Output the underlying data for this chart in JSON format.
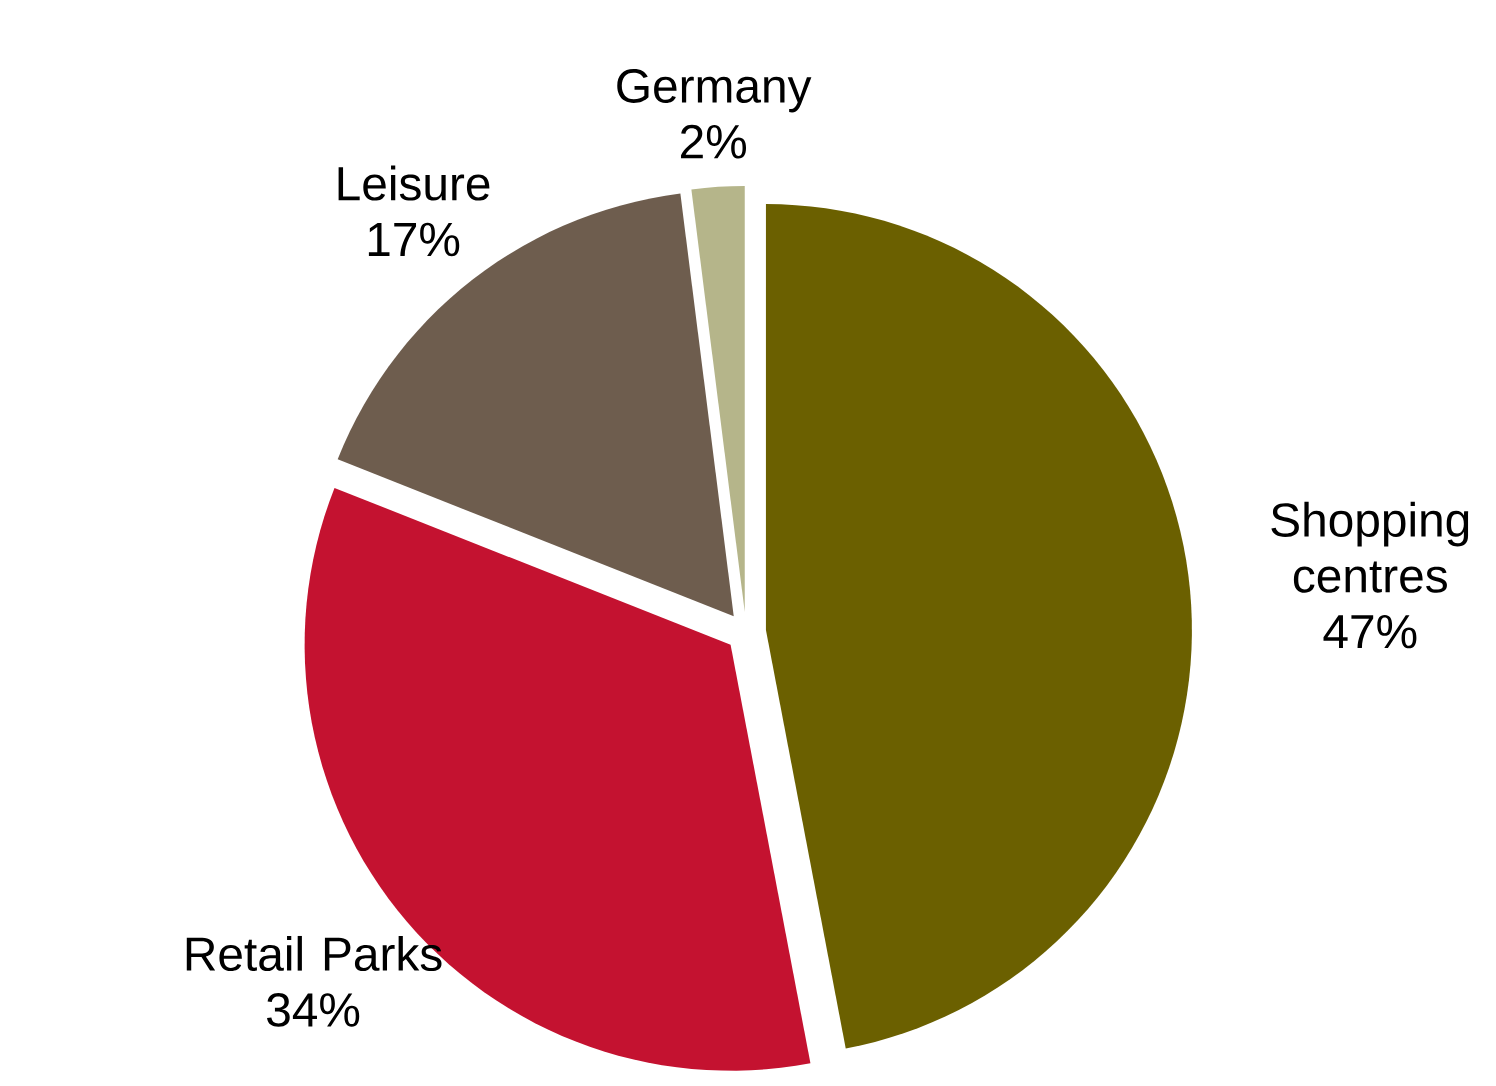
{
  "chart_data": {
    "type": "pie",
    "categories": [
      "Shopping centres",
      "Retail Parks",
      "Leisure",
      "Germany"
    ],
    "values": [
      47,
      34,
      17,
      2
    ],
    "colors": [
      "#6b6000",
      "#c41230",
      "#6e5d4e",
      "#b5b58a"
    ],
    "value_labels": [
      "47%",
      "34%",
      "17%",
      "2%"
    ]
  }
}
